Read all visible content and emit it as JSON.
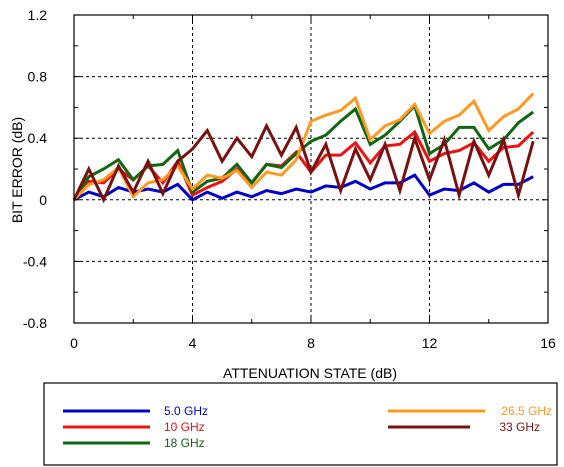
{
  "chart_data": {
    "type": "line",
    "title": "",
    "xlabel": "ATTENUATION STATE (dB)",
    "ylabel": "BIT ERROR (dB)",
    "xlim": [
      0,
      16
    ],
    "ylim": [
      -0.8,
      1.2
    ],
    "x_ticks": [
      "0",
      "4",
      "8",
      "12",
      "16"
    ],
    "y_ticks": [
      "1.2",
      "0.8",
      "0.4",
      "0",
      "-0.4",
      "-0.8"
    ],
    "x_tick_values": [
      0,
      4,
      8,
      12,
      16
    ],
    "y_tick_values": [
      1.2,
      0.8,
      0.4,
      0,
      -0.4,
      -0.8
    ],
    "grid": "dashed",
    "legend_position": "bottom",
    "x": [
      0,
      0.5,
      1,
      1.5,
      2,
      2.5,
      3,
      3.5,
      4,
      4.5,
      5,
      5.5,
      6,
      6.5,
      7,
      7.5,
      8,
      8.5,
      9,
      9.5,
      10,
      10.5,
      11,
      11.5,
      12,
      12.5,
      13,
      13.5,
      14,
      14.5,
      15,
      15.5
    ],
    "series": [
      {
        "name": "5.0 GHz",
        "color": "#0000cc",
        "values": [
          0,
          0.05,
          0.02,
          0.08,
          0.05,
          0.07,
          0.05,
          0.1,
          0.0,
          0.05,
          0.01,
          0.05,
          0.02,
          0.06,
          0.04,
          0.07,
          0.05,
          0.09,
          0.08,
          0.12,
          0.07,
          0.11,
          0.11,
          0.16,
          0.03,
          0.07,
          0.06,
          0.11,
          0.05,
          0.1,
          0.1,
          0.15
        ]
      },
      {
        "name": "10 GHz",
        "color": "#ee1111",
        "values": [
          0,
          0.12,
          0.11,
          0.2,
          0.13,
          0.22,
          0.11,
          0.25,
          0.03,
          0.08,
          0.12,
          0.2,
          0.11,
          0.23,
          0.22,
          0.31,
          0.18,
          0.29,
          0.29,
          0.37,
          0.24,
          0.35,
          0.36,
          0.44,
          0.25,
          0.3,
          0.32,
          0.37,
          0.25,
          0.34,
          0.35,
          0.44
        ]
      },
      {
        "name": "18 GHz",
        "color": "#116611",
        "values": [
          0,
          0.15,
          0.2,
          0.26,
          0.13,
          0.22,
          0.23,
          0.32,
          0.05,
          0.12,
          0.14,
          0.23,
          0.11,
          0.23,
          0.21,
          0.3,
          0.38,
          0.42,
          0.51,
          0.59,
          0.36,
          0.42,
          0.51,
          0.61,
          0.3,
          0.36,
          0.47,
          0.47,
          0.33,
          0.39,
          0.5,
          0.57
        ]
      },
      {
        "name": "26.5 GHz",
        "color": "#ff9922",
        "values": [
          0,
          0.1,
          0.13,
          0.21,
          0.02,
          0.11,
          0.13,
          0.22,
          0.07,
          0.16,
          0.14,
          0.19,
          0.08,
          0.18,
          0.16,
          0.26,
          0.51,
          0.55,
          0.58,
          0.66,
          0.39,
          0.48,
          0.52,
          0.62,
          0.43,
          0.51,
          0.55,
          0.64,
          0.45,
          0.54,
          0.59,
          0.69
        ]
      },
      {
        "name": "33 GHz",
        "color": "#7a1111",
        "values": [
          0,
          0.2,
          0.0,
          0.22,
          0.05,
          0.25,
          0.04,
          0.25,
          0.33,
          0.45,
          0.25,
          0.4,
          0.28,
          0.48,
          0.29,
          0.47,
          0.18,
          0.36,
          0.06,
          0.33,
          0.13,
          0.36,
          0.06,
          0.4,
          0.13,
          0.39,
          0.03,
          0.38,
          0.16,
          0.39,
          0.03,
          0.38
        ]
      }
    ]
  }
}
